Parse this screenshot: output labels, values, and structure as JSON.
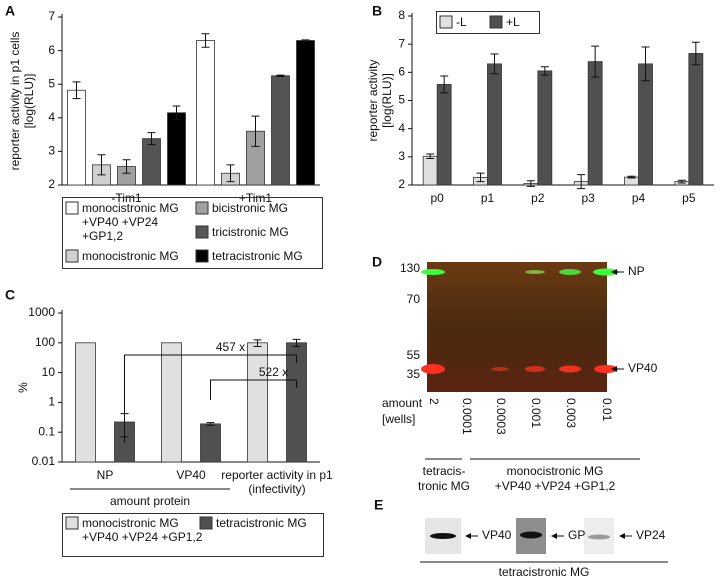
{
  "chart_data": [
    {
      "type": "bar",
      "label": "A",
      "ylabel": [
        "reporter activity in p1 cells",
        "[log(RLU)]"
      ],
      "categories": [
        "-Tim1",
        "+Tim1"
      ],
      "ylim": [
        2,
        7
      ],
      "yticks": [
        2,
        3,
        4,
        5,
        6,
        7
      ],
      "series": [
        {
          "name": "monocistronic MG +VP40 +VP24 +GP1,2",
          "color": "#ffffff",
          "values": [
            4.82,
            6.3
          ],
          "errors": [
            0.25,
            0.2
          ]
        },
        {
          "name": "monocistronic MG",
          "color": "#d0d0d0",
          "values": [
            2.6,
            2.35
          ],
          "errors": [
            0.3,
            0.25
          ]
        },
        {
          "name": "bicistronic MG",
          "color": "#a0a0a0",
          "values": [
            2.55,
            3.6
          ],
          "errors": [
            0.2,
            0.45
          ]
        },
        {
          "name": "tricistronic MG",
          "color": "#555555",
          "values": [
            3.38,
            5.25
          ],
          "errors": [
            0.18,
            0.02
          ]
        },
        {
          "name": "tetracistronic MG",
          "color": "#000000",
          "values": [
            4.15,
            6.3
          ],
          "errors": [
            0.2,
            0.02
          ]
        }
      ]
    },
    {
      "type": "bar",
      "label": "B",
      "ylabel": [
        "reporter activity",
        "[log(RLU)]"
      ],
      "categories": [
        "p0",
        "p1",
        "p2",
        "p3",
        "p4",
        "p5"
      ],
      "ylim": [
        2,
        8
      ],
      "yticks": [
        2,
        3,
        4,
        5,
        6,
        7,
        8
      ],
      "series": [
        {
          "name": "-L",
          "color": "#e0e0e0",
          "values": [
            3.02,
            2.27,
            2.05,
            2.12,
            2.28,
            2.12
          ],
          "errors": [
            0.08,
            0.15,
            0.1,
            0.25,
            0.03,
            0.05
          ]
        },
        {
          "name": "+L",
          "color": "#505050",
          "values": [
            5.57,
            6.3,
            6.05,
            6.38,
            6.3,
            6.67
          ],
          "errors": [
            0.3,
            0.35,
            0.15,
            0.55,
            0.6,
            0.4
          ]
        }
      ]
    },
    {
      "type": "bar",
      "label": "C",
      "ylabel": [
        "%"
      ],
      "log_scale": true,
      "categories": [
        "NP",
        "VP40",
        "reporter activity in p1 (infectivity)"
      ],
      "group_label": "amount protein",
      "annotations": [
        "457 x",
        "522 x"
      ],
      "ylim": [
        0.01,
        1000
      ],
      "yticks": [
        0.01,
        0.1,
        1,
        10,
        100,
        1000
      ],
      "series": [
        {
          "name": "monocistronic MG +VP40 +VP24 +GP1,2",
          "color": "#e0e0e0",
          "values": [
            100,
            100,
            100
          ],
          "errors_minus": [
            null,
            null,
            25
          ],
          "errors_plus": [
            null,
            null,
            25
          ]
        },
        {
          "name": "tetracistronic MG",
          "color": "#505050",
          "values": [
            0.22,
            0.19,
            100
          ],
          "errors_minus": [
            0.15,
            0.02,
            25
          ],
          "errors_plus": [
            0.2,
            0.02,
            30
          ]
        }
      ]
    }
  ],
  "gel": {
    "label": "D",
    "markers": [
      "130",
      "70",
      "55",
      "35"
    ],
    "bands": [
      "NP",
      "VP40"
    ],
    "amount_label": [
      "amount",
      "[wells]"
    ],
    "lanes": [
      "2",
      "0.0001",
      "0.0003",
      "0.001",
      "0.003",
      "0.01"
    ],
    "groups": [
      [
        "tetracis-",
        "tronic MG"
      ],
      [
        "monocistronic MG",
        "+VP40 +VP24 +GP1,2"
      ]
    ]
  },
  "blots": {
    "label": "E",
    "proteins": [
      "VP40",
      "GP",
      "VP24"
    ],
    "caption": "tetracistronic MG"
  }
}
